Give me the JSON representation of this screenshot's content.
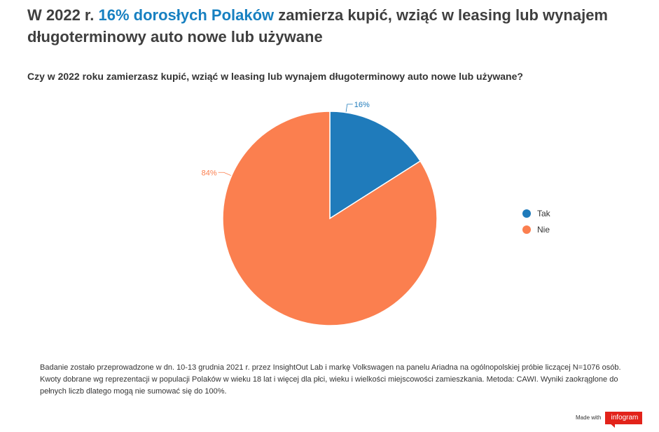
{
  "title": {
    "prefix": "W 2022 r. ",
    "accent": "16% dorosłych Polaków",
    "suffix_line1": " zamierza kupić, wziąć w leasing lub wynajem",
    "line2": "długoterminowy auto nowe lub używane"
  },
  "question": "Czy w 2022 roku zamierzasz kupić, wziąć w leasing lub wynajem długoterminowy auto nowe lub używane?",
  "chart_data": {
    "type": "pie",
    "categories": [
      "Tak",
      "Nie"
    ],
    "values": [
      16,
      84
    ],
    "data_labels": [
      "16%",
      "84%"
    ],
    "colors": [
      "#1f7bbb",
      "#fb7f4f"
    ],
    "legend_position": "right"
  },
  "footnote": "Badanie zostało przeprowadzone w dn. 10-13 grudnia 2021 r. przez InsightOut Lab i markę Volkswagen na panelu Ariadna na ogólnopolskiej próbie liczącej N=1076 osób. Kwoty dobrane wg reprezentacji w populacji Polaków w wieku 18 lat i więcej dla płci, wieku i wielkości miejscowości zamieszkania. Metoda: CAWI. Wyniki zaokrąglone do pełnych liczb dlatego mogą nie sumować się do 100%.",
  "branding": {
    "made_with": "Made with",
    "brand": "infogram",
    "brand_color": "#e2231a"
  }
}
